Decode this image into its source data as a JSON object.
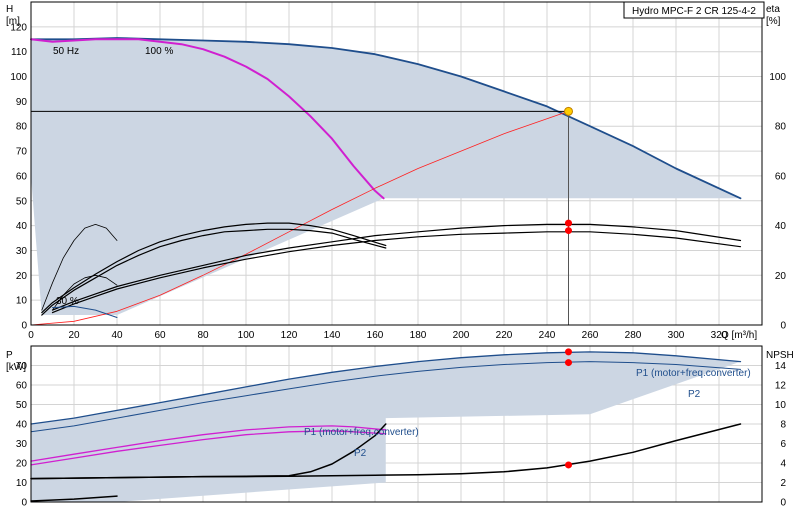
{
  "chart_data": [
    {
      "id": "head",
      "type": "line",
      "title": "Hydro MPC-F 2 CR 125-4-2",
      "xlabel": "Q [m³/h]",
      "ylabel_line1": "H",
      "ylabel_line2": "[m]",
      "y2label_line1": "eta",
      "y2label_line2": "[%]",
      "xlim": [
        0,
        340
      ],
      "ylim": [
        0,
        130
      ],
      "y2lim": [
        0,
        130
      ],
      "xticks": [
        0,
        20,
        40,
        60,
        80,
        100,
        120,
        140,
        160,
        180,
        200,
        220,
        240,
        260,
        280,
        300,
        320
      ],
      "yticks": [
        0,
        10,
        20,
        30,
        40,
        50,
        60,
        70,
        80,
        90,
        100,
        110,
        120
      ],
      "y2ticks": [
        0,
        20,
        40,
        60,
        80,
        100
      ],
      "grid": true,
      "annotations": [
        "50 Hz",
        "100 %",
        "30 %"
      ],
      "duty_point": {
        "q": 250,
        "h": 86
      },
      "duty_markers_eta": [
        41,
        38
      ],
      "series": [
        {
          "color": "#1f4e8c",
          "width": 1.8,
          "x": [
            0,
            20,
            40,
            60,
            80,
            100,
            120,
            140,
            160,
            180,
            200,
            220,
            240,
            260,
            280,
            300,
            330
          ],
          "y": [
            115,
            115,
            115.5,
            115,
            114.5,
            114,
            113,
            111.5,
            109,
            105,
            100,
            94,
            88,
            80,
            72,
            63,
            51
          ]
        },
        {
          "color": "#d020d0",
          "width": 2,
          "x": [
            0,
            10,
            20,
            30,
            40,
            50,
            60,
            70,
            80,
            90,
            100,
            110,
            120,
            130,
            140,
            150,
            160,
            164
          ],
          "y": [
            115,
            114,
            114.5,
            115,
            115,
            115,
            114,
            113,
            111,
            108,
            104,
            99,
            92,
            84,
            75,
            64,
            54,
            51
          ]
        },
        {
          "color": "#ff2020",
          "width": 0.8,
          "x": [
            0,
            20,
            40,
            60,
            80,
            100,
            120,
            140,
            160,
            180,
            200,
            220,
            250
          ],
          "y": [
            0,
            1.5,
            5.5,
            12,
            20,
            28.5,
            37.5,
            46.5,
            55,
            63,
            70,
            77,
            86
          ]
        },
        {
          "color": "#000000",
          "width": 1.2,
          "x": [
            5,
            10,
            20,
            30,
            40,
            50,
            60,
            70,
            80,
            90,
            100,
            110,
            120,
            130,
            140,
            150,
            165
          ],
          "y": [
            4,
            8,
            14,
            19,
            24,
            28,
            31.5,
            34,
            36,
            37.5,
            38,
            38.5,
            38.5,
            38,
            37,
            34.5,
            31
          ]
        },
        {
          "color": "#000000",
          "width": 1.2,
          "x": [
            5,
            10,
            20,
            30,
            40,
            50,
            60,
            70,
            80,
            90,
            100,
            110,
            120,
            130,
            140,
            150,
            165
          ],
          "y": [
            5,
            9,
            15,
            20.5,
            25.5,
            30,
            33.5,
            36,
            38,
            39.5,
            40.5,
            41,
            41,
            40,
            38.5,
            36,
            32
          ]
        },
        {
          "color": "#000000",
          "width": 1.2,
          "x": [
            10,
            20,
            30,
            40,
            60,
            80,
            100,
            120,
            140,
            160,
            180,
            200,
            220,
            240,
            260,
            280,
            300,
            330
          ],
          "y": [
            5,
            8.5,
            11.5,
            14.5,
            19,
            23,
            26.5,
            29.5,
            32,
            34,
            35.5,
            36.5,
            37,
            37.5,
            37.5,
            36.5,
            35,
            31.5
          ]
        },
        {
          "color": "#000000",
          "width": 1.2,
          "x": [
            10,
            20,
            30,
            40,
            60,
            80,
            100,
            120,
            140,
            160,
            180,
            200,
            220,
            240,
            260,
            280,
            300,
            330
          ],
          "y": [
            6,
            9.5,
            12.5,
            15.5,
            20,
            24,
            28,
            31,
            33.5,
            36,
            37.5,
            39,
            40,
            40.5,
            40.5,
            39.5,
            38,
            34
          ]
        },
        {
          "color": "#000000",
          "width": 0.8,
          "x": [
            5,
            10,
            15,
            20,
            25,
            30,
            35,
            40
          ],
          "y": [
            6,
            17,
            27,
            34,
            39,
            40.5,
            39,
            34
          ]
        },
        {
          "color": "#000000",
          "width": 0.8,
          "x": [
            10,
            15,
            20,
            25,
            30,
            35,
            40
          ],
          "y": [
            6,
            12,
            16.5,
            19,
            20,
            19,
            16
          ]
        },
        {
          "color": "#1f4e8c",
          "width": 1,
          "x": [
            10,
            20,
            30,
            40
          ],
          "y": [
            7,
            7.5,
            6,
            3
          ]
        }
      ]
    },
    {
      "id": "power",
      "type": "line",
      "xlabel": "",
      "ylabel_line1": "P",
      "ylabel_line2": "[kW]",
      "y2label": "NPSH",
      "xlim": [
        0,
        340
      ],
      "ylim": [
        0,
        80
      ],
      "y2lim": [
        0,
        16
      ],
      "yticks": [
        0,
        10,
        20,
        30,
        40,
        50,
        60,
        70
      ],
      "y2ticks": [
        0,
        2,
        4,
        6,
        8,
        10,
        12,
        14
      ],
      "grid": true,
      "annotations": [
        "P1 (motor+freq.converter)",
        "P2",
        "P1 (motor+freq.converter)",
        "P2"
      ],
      "duty_markers_p": [
        77,
        71.5
      ],
      "duty_marker_npsh": 3.8,
      "series": [
        {
          "color": "#1f4e8c",
          "width": 1.3,
          "x": [
            0,
            20,
            40,
            60,
            80,
            100,
            120,
            140,
            160,
            180,
            200,
            220,
            240,
            260,
            280,
            300,
            330
          ],
          "y": [
            40,
            43,
            47,
            51,
            55,
            59,
            63,
            66.5,
            69.5,
            72,
            74,
            75.5,
            76.5,
            77,
            76.5,
            75,
            72
          ]
        },
        {
          "color": "#1f4e8c",
          "width": 1,
          "x": [
            0,
            20,
            40,
            60,
            80,
            100,
            120,
            140,
            160,
            180,
            200,
            220,
            240,
            260,
            280,
            300,
            330
          ],
          "y": [
            36,
            39,
            43,
            47,
            51,
            54.5,
            58,
            61.5,
            64.5,
            67,
            69,
            70.5,
            71.5,
            72,
            71.5,
            70.5,
            68
          ]
        },
        {
          "color": "#d020d0",
          "width": 1.3,
          "x": [
            0,
            20,
            40,
            60,
            80,
            100,
            120,
            140,
            150,
            165
          ],
          "y": [
            21,
            24.5,
            28,
            31.5,
            34.5,
            37,
            38.5,
            39,
            38.5,
            37
          ]
        },
        {
          "color": "#d020d0",
          "width": 1.3,
          "x": [
            0,
            20,
            40,
            60,
            80,
            100,
            120,
            140,
            150,
            165
          ],
          "y": [
            19,
            22.5,
            26,
            29,
            32,
            34.5,
            36,
            36.5,
            36,
            35
          ]
        },
        {
          "color": "#000000",
          "width": 1.5,
          "x": [
            0,
            20,
            40,
            60,
            80,
            100,
            120,
            140,
            160,
            180,
            200,
            220,
            240,
            260,
            280,
            300,
            330
          ],
          "y": [
            2.4,
            2.45,
            2.5,
            2.55,
            2.6,
            2.6,
            2.65,
            2.7,
            2.75,
            2.8,
            2.9,
            3.1,
            3.5,
            4.2,
            5.1,
            6.3,
            8
          ]
        },
        {
          "color": "#000000",
          "width": 1.5,
          "x": [
            0,
            20,
            40,
            60,
            80,
            100,
            120,
            130,
            140,
            150,
            160,
            165
          ],
          "y": [
            2.4,
            2.45,
            2.5,
            2.55,
            2.6,
            2.65,
            2.7,
            3.1,
            3.9,
            5.2,
            6.8,
            8
          ]
        },
        {
          "color": "#000000",
          "width": 1.5,
          "x": [
            0,
            20,
            40
          ],
          "y": [
            0.1,
            0.3,
            0.6
          ]
        }
      ]
    }
  ]
}
